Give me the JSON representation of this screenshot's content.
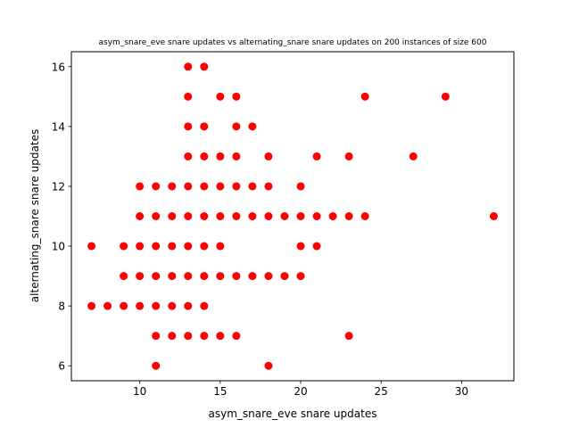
{
  "chart_data": {
    "type": "scatter",
    "title": "asym_snare_eve snare updates vs alternating_snare snare updates on 200 instances of size 600",
    "xlabel": "asym_snare_eve snare updates",
    "ylabel": "alternating_snare snare updates",
    "xlim": [
      5.75,
      33.25
    ],
    "ylim": [
      5.5,
      16.5
    ],
    "xticks": [
      10,
      15,
      20,
      25,
      30
    ],
    "yticks": [
      6,
      8,
      10,
      12,
      14,
      16
    ],
    "grid": false,
    "marker_color": "#ff0000",
    "points": [
      [
        13,
        16
      ],
      [
        14,
        16
      ],
      [
        13,
        15
      ],
      [
        15,
        15
      ],
      [
        16,
        15
      ],
      [
        24,
        15
      ],
      [
        29,
        15
      ],
      [
        13,
        14
      ],
      [
        14,
        14
      ],
      [
        16,
        14
      ],
      [
        17,
        14
      ],
      [
        13,
        13
      ],
      [
        14,
        13
      ],
      [
        15,
        13
      ],
      [
        16,
        13
      ],
      [
        18,
        13
      ],
      [
        21,
        13
      ],
      [
        23,
        13
      ],
      [
        27,
        13
      ],
      [
        10,
        12
      ],
      [
        11,
        12
      ],
      [
        12,
        12
      ],
      [
        13,
        12
      ],
      [
        14,
        12
      ],
      [
        15,
        12
      ],
      [
        16,
        12
      ],
      [
        17,
        12
      ],
      [
        18,
        12
      ],
      [
        20,
        12
      ],
      [
        10,
        11
      ],
      [
        11,
        11
      ],
      [
        12,
        11
      ],
      [
        13,
        11
      ],
      [
        14,
        11
      ],
      [
        15,
        11
      ],
      [
        16,
        11
      ],
      [
        17,
        11
      ],
      [
        18,
        11
      ],
      [
        19,
        11
      ],
      [
        20,
        11
      ],
      [
        21,
        11
      ],
      [
        22,
        11
      ],
      [
        23,
        11
      ],
      [
        24,
        11
      ],
      [
        32,
        11
      ],
      [
        7,
        10
      ],
      [
        9,
        10
      ],
      [
        10,
        10
      ],
      [
        11,
        10
      ],
      [
        12,
        10
      ],
      [
        13,
        10
      ],
      [
        14,
        10
      ],
      [
        15,
        10
      ],
      [
        20,
        10
      ],
      [
        21,
        10
      ],
      [
        9,
        9
      ],
      [
        10,
        9
      ],
      [
        11,
        9
      ],
      [
        12,
        9
      ],
      [
        13,
        9
      ],
      [
        14,
        9
      ],
      [
        15,
        9
      ],
      [
        16,
        9
      ],
      [
        17,
        9
      ],
      [
        18,
        9
      ],
      [
        19,
        9
      ],
      [
        20,
        9
      ],
      [
        7,
        8
      ],
      [
        8,
        8
      ],
      [
        9,
        8
      ],
      [
        10,
        8
      ],
      [
        11,
        8
      ],
      [
        12,
        8
      ],
      [
        13,
        8
      ],
      [
        14,
        8
      ],
      [
        11,
        7
      ],
      [
        12,
        7
      ],
      [
        13,
        7
      ],
      [
        14,
        7
      ],
      [
        15,
        7
      ],
      [
        16,
        7
      ],
      [
        23,
        7
      ],
      [
        11,
        6
      ],
      [
        18,
        6
      ]
    ]
  }
}
